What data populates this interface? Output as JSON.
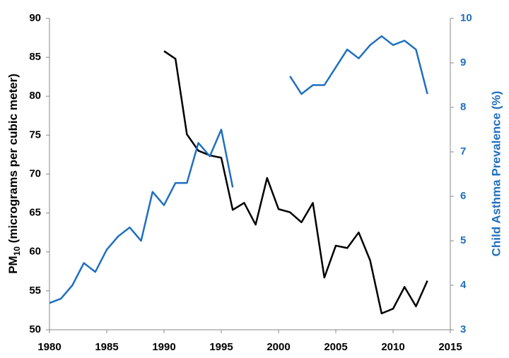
{
  "chart_data": {
    "type": "line",
    "ylabel": {
      "main": "PM",
      "subscript": "10",
      "rest": " (micrograms per cubic meter)"
    },
    "y2label": "Child Asthma Prevalence (%)",
    "x": [
      1980,
      1981,
      1982,
      1983,
      1984,
      1985,
      1986,
      1987,
      1988,
      1989,
      1990,
      1991,
      1992,
      1993,
      1994,
      1995,
      1996,
      1997,
      1998,
      1999,
      2000,
      2001,
      2002,
      2003,
      2004,
      2005,
      2006,
      2007,
      2008,
      2009,
      2010,
      2011,
      2012,
      2013
    ],
    "series": [
      {
        "color": "#000000",
        "axis": "y",
        "values": [
          null,
          null,
          null,
          null,
          null,
          null,
          null,
          null,
          null,
          null,
          85.8,
          84.8,
          75.1,
          73.0,
          72.4,
          72.1,
          65.4,
          66.3,
          63.5,
          69.5,
          65.5,
          65.1,
          63.8,
          66.3,
          56.7,
          60.8,
          60.5,
          62.5,
          58.9,
          52.1,
          52.7,
          55.5,
          53.0,
          56.3
        ]
      },
      {
        "color": "#1f6fbf",
        "axis": "y2",
        "values": [
          3.6,
          3.7,
          4.0,
          4.5,
          4.3,
          4.8,
          5.1,
          5.3,
          5.0,
          6.1,
          5.8,
          6.3,
          6.3,
          7.2,
          6.9,
          7.5,
          6.2,
          null,
          null,
          null,
          null,
          8.7,
          8.3,
          8.5,
          8.5,
          8.9,
          9.3,
          9.1,
          9.4,
          9.6,
          9.4,
          9.5,
          9.3,
          8.3
        ]
      }
    ],
    "xlim": [
      1980,
      2015
    ],
    "xticks": [
      1980,
      1985,
      1990,
      1995,
      2000,
      2005,
      2010,
      2015
    ],
    "ylim": [
      50,
      90
    ],
    "yticks": [
      50,
      55,
      60,
      65,
      70,
      75,
      80,
      85,
      90
    ],
    "y2lim": [
      3,
      10
    ],
    "y2ticks": [
      3,
      4,
      5,
      6,
      7,
      8,
      9,
      10
    ],
    "y2color": "#1f6fbf"
  }
}
